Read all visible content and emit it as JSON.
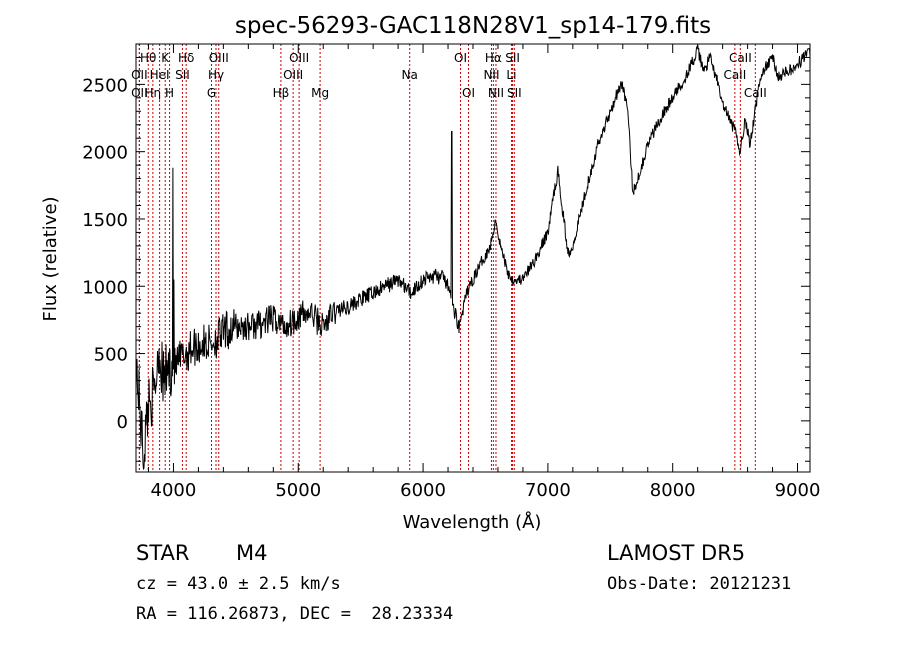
{
  "chart_data": {
    "type": "line",
    "title": "spec-56293-GAC118N28V1_sp14-179.fits",
    "xlabel": "Wavelength (Å)",
    "ylabel": "Flux (relative)",
    "xlim": [
      3700,
      9100
    ],
    "ylim": [
      -380,
      2800
    ],
    "x_ticks": [
      4000,
      5000,
      6000,
      7000,
      8000,
      9000
    ],
    "y_ticks": [
      0,
      500,
      1000,
      1500,
      2000,
      2500
    ],
    "grid": false,
    "line_color": "#000000",
    "marker_color": "#cc0000",
    "spectral_lines": [
      {
        "label": "Hθ",
        "wavelength": 3798,
        "row": 0
      },
      {
        "label": "OII",
        "wavelength": 3727,
        "row": 1
      },
      {
        "label": "OII",
        "wavelength": 3727,
        "row": 2
      },
      {
        "label": "Hη",
        "wavelength": 3835,
        "row": 2
      },
      {
        "label": "K",
        "wavelength": 3934,
        "row": 0
      },
      {
        "label": "HeI",
        "wavelength": 3889,
        "row": 1
      },
      {
        "label": "H",
        "wavelength": 3969,
        "row": 2
      },
      {
        "label": "Hδ",
        "wavelength": 4102,
        "row": 0
      },
      {
        "label": "SII",
        "wavelength": 4072,
        "row": 1
      },
      {
        "label": "OIII",
        "wavelength": 4363,
        "row": 0
      },
      {
        "label": "Hγ",
        "wavelength": 4341,
        "row": 1
      },
      {
        "label": "G",
        "wavelength": 4305,
        "row": 2
      },
      {
        "label": "OIII",
        "wavelength": 5007,
        "row": 0
      },
      {
        "label": "OIII",
        "wavelength": 4959,
        "row": 1
      },
      {
        "label": "Hβ",
        "wavelength": 4861,
        "row": 2
      },
      {
        "label": "Mg",
        "wavelength": 5175,
        "row": 2
      },
      {
        "label": "Na",
        "wavelength": 5893,
        "row": 1
      },
      {
        "label": "OI",
        "wavelength": 6300,
        "row": 0
      },
      {
        "label": "OI",
        "wavelength": 6364,
        "row": 2
      },
      {
        "label": "Hα",
        "wavelength": 6563,
        "row": 0
      },
      {
        "label": "NII",
        "wavelength": 6548,
        "row": 1
      },
      {
        "label": "NII",
        "wavelength": 6584,
        "row": 2
      },
      {
        "label": "SII",
        "wavelength": 6717,
        "row": 0
      },
      {
        "label": "Li",
        "wavelength": 6708,
        "row": 1
      },
      {
        "label": "SII",
        "wavelength": 6731,
        "row": 2
      },
      {
        "label": "CaII",
        "wavelength": 8542,
        "row": 0
      },
      {
        "label": "CaII",
        "wavelength": 8498,
        "row": 1
      },
      {
        "label": "CaII",
        "wavelength": 8662,
        "row": 2
      }
    ],
    "spectrum_anchors": [
      [
        3700,
        450
      ],
      [
        3730,
        100
      ],
      [
        3760,
        -250
      ],
      [
        3800,
        150
      ],
      [
        3850,
        200
      ],
      [
        3880,
        550
      ],
      [
        3920,
        300
      ],
      [
        3960,
        400
      ],
      [
        4000,
        380
      ],
      [
        4050,
        450
      ],
      [
        4100,
        500
      ],
      [
        4150,
        550
      ],
      [
        4200,
        560
      ],
      [
        4300,
        580
      ],
      [
        4400,
        650
      ],
      [
        4500,
        700
      ],
      [
        4600,
        700
      ],
      [
        4700,
        720
      ],
      [
        4800,
        760
      ],
      [
        4900,
        700
      ],
      [
        5000,
        780
      ],
      [
        5100,
        800
      ],
      [
        5200,
        700
      ],
      [
        5300,
        820
      ],
      [
        5400,
        850
      ],
      [
        5500,
        900
      ],
      [
        5600,
        950
      ],
      [
        5700,
        1000
      ],
      [
        5800,
        1050
      ],
      [
        5900,
        950
      ],
      [
        6000,
        1050
      ],
      [
        6100,
        1080
      ],
      [
        6180,
        1050
      ],
      [
        6250,
        820
      ],
      [
        6290,
        700
      ],
      [
        6350,
        950
      ],
      [
        6450,
        1150
      ],
      [
        6540,
        1300
      ],
      [
        6580,
        1500
      ],
      [
        6620,
        1300
      ],
      [
        6680,
        1100
      ],
      [
        6720,
        1050
      ],
      [
        6800,
        1050
      ],
      [
        6900,
        1200
      ],
      [
        7000,
        1400
      ],
      [
        7050,
        1700
      ],
      [
        7080,
        1850
      ],
      [
        7120,
        1550
      ],
      [
        7160,
        1250
      ],
      [
        7200,
        1300
      ],
      [
        7300,
        1700
      ],
      [
        7400,
        2050
      ],
      [
        7500,
        2300
      ],
      [
        7560,
        2450
      ],
      [
        7600,
        2500
      ],
      [
        7640,
        2300
      ],
      [
        7680,
        1700
      ],
      [
        7720,
        1800
      ],
      [
        7800,
        2050
      ],
      [
        7900,
        2250
      ],
      [
        8000,
        2400
      ],
      [
        8100,
        2550
      ],
      [
        8150,
        2650
      ],
      [
        8200,
        2750
      ],
      [
        8250,
        2600
      ],
      [
        8300,
        2700
      ],
      [
        8350,
        2550
      ],
      [
        8400,
        2350
      ],
      [
        8450,
        2250
      ],
      [
        8500,
        2150
      ],
      [
        8540,
        2000
      ],
      [
        8580,
        2250
      ],
      [
        8620,
        2050
      ],
      [
        8660,
        2300
      ],
      [
        8700,
        2550
      ],
      [
        8760,
        2650
      ],
      [
        8800,
        2700
      ],
      [
        8850,
        2550
      ],
      [
        8900,
        2600
      ],
      [
        8950,
        2600
      ],
      [
        9000,
        2650
      ],
      [
        9050,
        2700
      ],
      [
        9100,
        2750
      ]
    ],
    "spikes": [
      {
        "wavelength": 3995,
        "flux": 1880
      },
      {
        "wavelength": 4005,
        "flux": 1050
      },
      {
        "wavelength": 6230,
        "flux": 2150
      }
    ]
  },
  "info": {
    "object_type": "STAR",
    "subclass": "M4",
    "survey": "LAMOST DR5",
    "velocity": "cz = 43.0 ± 2.5 km/s",
    "obs_date": "Obs-Date: 20121231",
    "coords": "RA = 116.26873, DEC =  28.23334"
  }
}
